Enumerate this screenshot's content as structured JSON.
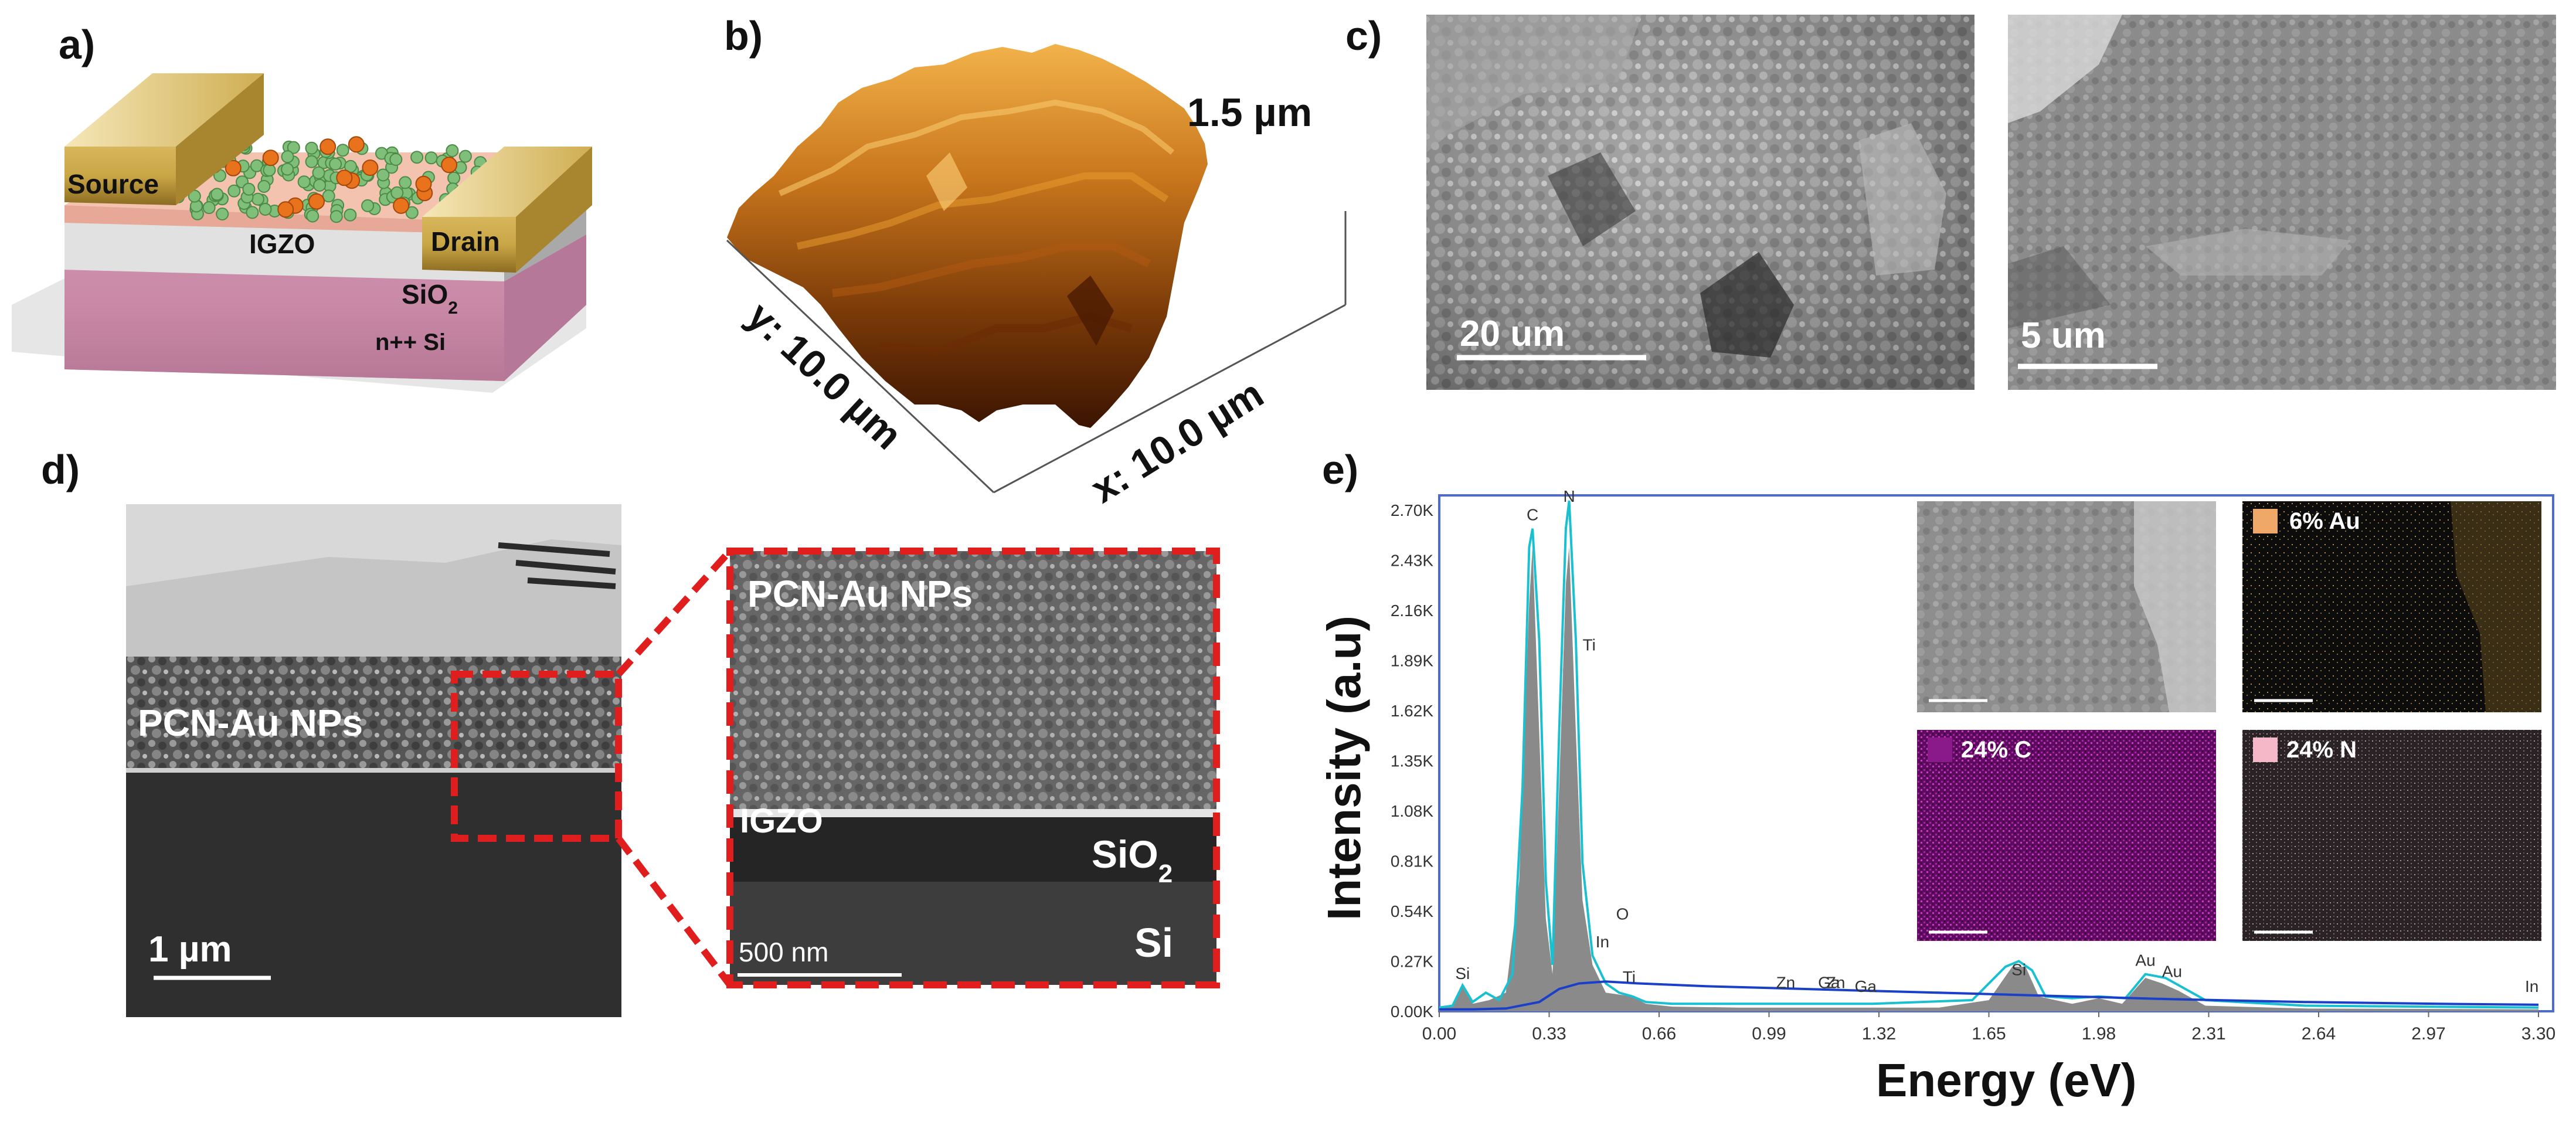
{
  "panels": {
    "a": {
      "label": "a)",
      "source": "Source",
      "drain": "Drain",
      "igzo": "IGZO",
      "sio2_main": "SiO",
      "sio2_sub": "2",
      "si": "n++ Si"
    },
    "b": {
      "label": "b)",
      "height": "1.5 µm",
      "y_axis": "y: 10.0 µm",
      "x_axis": "x: 10.0 µm"
    },
    "c": {
      "label": "c)",
      "scale_left": "20 um",
      "scale_right": "5 um"
    },
    "d": {
      "label": "d)",
      "layer_label": "PCN-Au NPs",
      "scale": "1 µm",
      "inset_layer": "PCN-Au NPs",
      "inset_igzo": "IGZO",
      "inset_sio2_main": "SiO",
      "inset_sio2_sub": "2",
      "inset_si": "Si",
      "inset_scale": "500 nm"
    },
    "e": {
      "label": "e)",
      "maps": [
        {
          "percent": "6% Au",
          "color": "#f0a868"
        },
        {
          "percent": "24% C",
          "color": "#8a1a8a"
        },
        {
          "percent": "24% N",
          "color": "#f4b8c8"
        }
      ]
    }
  },
  "chart_data": {
    "type": "line",
    "title": "",
    "xlabel": "Energy (eV)",
    "ylabel": "Intensity (a.u)",
    "xlim": [
      0.0,
      3.3
    ],
    "ylim": [
      0,
      2700
    ],
    "x_ticks": [
      "0.00",
      "0.33",
      "0.66",
      "0.99",
      "1.32",
      "1.65",
      "1.98",
      "2.31",
      "2.64",
      "2.97",
      "3.30"
    ],
    "y_ticks": [
      "0.00K",
      "0.27K",
      "0.54K",
      "0.81K",
      "1.08K",
      "1.35K",
      "1.62K",
      "1.89K",
      "2.16K",
      "2.43K",
      "2.70K"
    ],
    "peaks": [
      {
        "label": "C",
        "x": 0.28,
        "y": 2600
      },
      {
        "label": "N",
        "x": 0.39,
        "y": 2750
      },
      {
        "label": "Si",
        "x": 0.07,
        "y": 130
      },
      {
        "label": "Ti",
        "x": 0.45,
        "y": 1900
      },
      {
        "label": "In",
        "x": 0.49,
        "y": 300
      },
      {
        "label": "O",
        "x": 0.55,
        "y": 450
      },
      {
        "label": "Ti",
        "x": 0.57,
        "y": 110
      },
      {
        "label": "Zn",
        "x": 1.04,
        "y": 80
      },
      {
        "label": "Ga",
        "x": 1.17,
        "y": 80
      },
      {
        "label": "Zn",
        "x": 1.19,
        "y": 80
      },
      {
        "label": "Ga",
        "x": 1.28,
        "y": 60
      },
      {
        "label": "Si",
        "x": 1.74,
        "y": 150
      },
      {
        "label": "Au",
        "x": 2.12,
        "y": 200
      },
      {
        "label": "Au",
        "x": 2.2,
        "y": 140
      },
      {
        "label": "In",
        "x": 3.28,
        "y": 60
      }
    ],
    "series": [
      {
        "type": "area",
        "color": "#8a8a8a",
        "points": [
          [
            0.0,
            20
          ],
          [
            0.04,
            30
          ],
          [
            0.07,
            130
          ],
          [
            0.1,
            40
          ],
          [
            0.15,
            60
          ],
          [
            0.2,
            100
          ],
          [
            0.24,
            700
          ],
          [
            0.27,
            2200
          ],
          [
            0.28,
            2500
          ],
          [
            0.3,
            1500
          ],
          [
            0.32,
            500
          ],
          [
            0.34,
            200
          ],
          [
            0.36,
            1200
          ],
          [
            0.38,
            2300
          ],
          [
            0.39,
            2500
          ],
          [
            0.41,
            1500
          ],
          [
            0.43,
            600
          ],
          [
            0.46,
            250
          ],
          [
            0.5,
            100
          ],
          [
            0.54,
            90
          ],
          [
            0.58,
            80
          ],
          [
            0.62,
            40
          ],
          [
            0.7,
            25
          ],
          [
            0.9,
            20
          ],
          [
            1.2,
            20
          ],
          [
            1.5,
            20
          ],
          [
            1.65,
            60
          ],
          [
            1.72,
            240
          ],
          [
            1.76,
            240
          ],
          [
            1.8,
            80
          ],
          [
            1.9,
            40
          ],
          [
            1.98,
            70
          ],
          [
            2.05,
            40
          ],
          [
            2.12,
            180
          ],
          [
            2.17,
            150
          ],
          [
            2.22,
            110
          ],
          [
            2.3,
            30
          ],
          [
            2.6,
            15
          ],
          [
            3.3,
            10
          ]
        ]
      },
      {
        "type": "line",
        "color": "#19c0cf",
        "points": [
          [
            0.0,
            20
          ],
          [
            0.04,
            30
          ],
          [
            0.07,
            140
          ],
          [
            0.1,
            50
          ],
          [
            0.14,
            100
          ],
          [
            0.18,
            60
          ],
          [
            0.22,
            200
          ],
          [
            0.25,
            1200
          ],
          [
            0.27,
            2500
          ],
          [
            0.28,
            2600
          ],
          [
            0.3,
            2000
          ],
          [
            0.32,
            700
          ],
          [
            0.34,
            250
          ],
          [
            0.36,
            1500
          ],
          [
            0.38,
            2600
          ],
          [
            0.39,
            2750
          ],
          [
            0.41,
            2000
          ],
          [
            0.43,
            800
          ],
          [
            0.46,
            300
          ],
          [
            0.5,
            150
          ],
          [
            0.54,
            100
          ],
          [
            0.58,
            80
          ],
          [
            0.62,
            50
          ],
          [
            0.7,
            40
          ],
          [
            1.0,
            40
          ],
          [
            1.3,
            40
          ],
          [
            1.6,
            60
          ],
          [
            1.7,
            240
          ],
          [
            1.74,
            270
          ],
          [
            1.78,
            220
          ],
          [
            1.82,
            80
          ],
          [
            1.9,
            70
          ],
          [
            1.98,
            80
          ],
          [
            2.06,
            70
          ],
          [
            2.12,
            200
          ],
          [
            2.18,
            180
          ],
          [
            2.24,
            120
          ],
          [
            2.3,
            60
          ],
          [
            2.6,
            30
          ],
          [
            3.3,
            20
          ]
        ]
      },
      {
        "type": "line",
        "color": "#1a3fc8",
        "points": [
          [
            0.0,
            10
          ],
          [
            0.1,
            10
          ],
          [
            0.2,
            15
          ],
          [
            0.3,
            50
          ],
          [
            0.36,
            120
          ],
          [
            0.42,
            150
          ],
          [
            0.5,
            160
          ],
          [
            0.6,
            150
          ],
          [
            0.8,
            135
          ],
          [
            1.0,
            125
          ],
          [
            1.3,
            110
          ],
          [
            1.6,
            95
          ],
          [
            1.9,
            80
          ],
          [
            2.2,
            65
          ],
          [
            2.6,
            50
          ],
          [
            3.0,
            40
          ],
          [
            3.3,
            35
          ]
        ]
      }
    ]
  }
}
